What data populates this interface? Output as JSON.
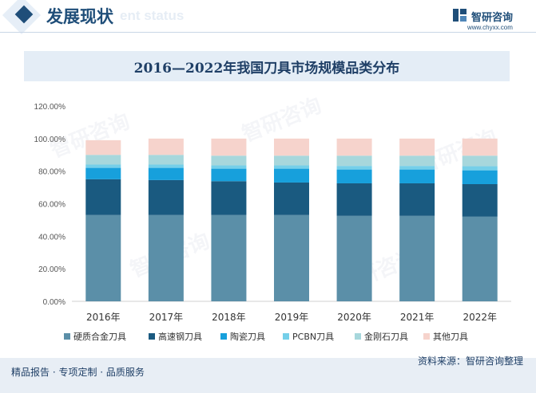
{
  "header": {
    "title": "发展现状",
    "subtitle": "ent status",
    "logo_name": "智研咨询",
    "logo_url": "www.chyxx.com"
  },
  "colors": {
    "硬质合金刀具": "#5b8fa8",
    "高速钢刀具": "#1a5a80",
    "陶瓷刀具": "#17a0dc",
    "PCBN刀具": "#75cfe9",
    "金刚石刀具": "#a7d7dc",
    "其他刀具": "#f6d3cc"
  },
  "chart_data": {
    "type": "bar",
    "stacked": true,
    "title": "2016—2022年我国刀具市场规模品类分布",
    "categories": [
      "2016年",
      "2017年",
      "2018年",
      "2019年",
      "2020年",
      "2021年",
      "2022年"
    ],
    "y_ticks": [
      "0.00%",
      "20.00%",
      "40.00%",
      "60.00%",
      "80.00%",
      "100.00%",
      "120.00%"
    ],
    "ylim": [
      0,
      120
    ],
    "grid": false,
    "legend_position": "bottom",
    "series": [
      {
        "name": "硬质合金刀具",
        "values": [
          53.0,
          53.0,
          53.0,
          53.0,
          52.5,
          52.5,
          52.0
        ]
      },
      {
        "name": "高速钢刀具",
        "values": [
          22.0,
          21.5,
          20.8,
          20.0,
          20.0,
          20.0,
          20.0
        ]
      },
      {
        "name": "陶瓷刀具",
        "values": [
          7.0,
          7.5,
          7.7,
          8.5,
          8.5,
          8.5,
          8.5
        ]
      },
      {
        "name": "PCBN刀具",
        "values": [
          2.0,
          2.0,
          2.0,
          2.0,
          2.2,
          2.2,
          2.5
        ]
      },
      {
        "name": "金刚石刀具",
        "values": [
          6.0,
          6.0,
          6.0,
          6.0,
          6.3,
          6.3,
          6.5
        ]
      },
      {
        "name": "其他刀具",
        "values": [
          9.0,
          10.0,
          10.5,
          10.5,
          10.5,
          10.5,
          10.5
        ]
      }
    ]
  },
  "footer": {
    "left": "精品报告 · 专项定制 · 品质服务",
    "right": "资料来源：智研咨询整理"
  }
}
